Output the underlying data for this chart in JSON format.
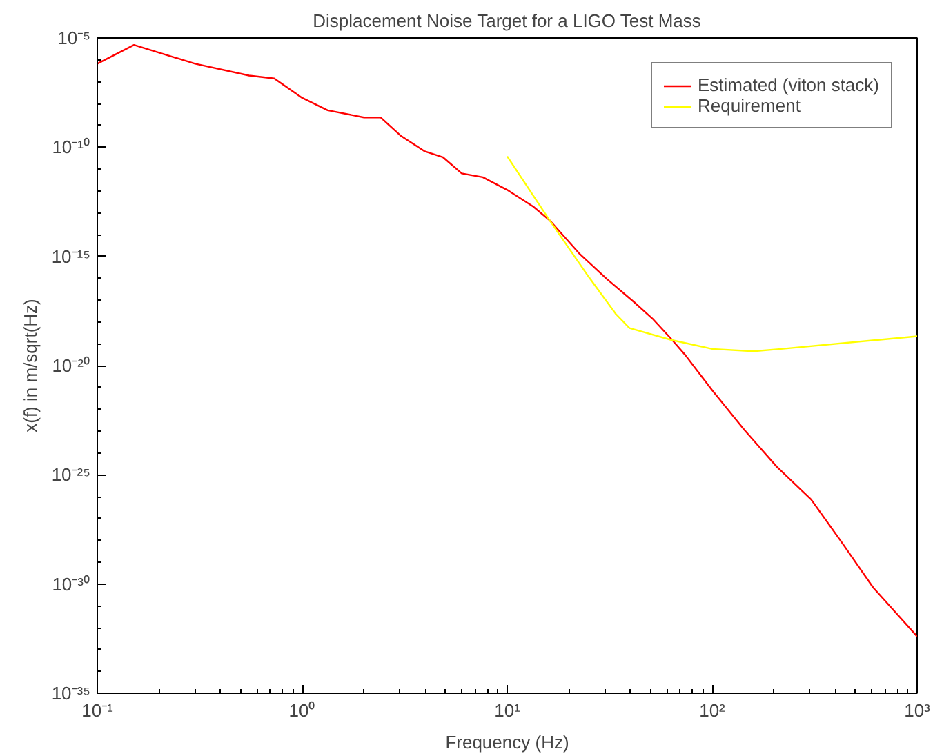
{
  "chart_data": {
    "type": "line",
    "title": "Displacement Noise Target for a LIGO Test Mass",
    "xlabel": "Frequency (Hz)",
    "ylabel": "x(f) in m/sqrt(Hz)",
    "log": "xy",
    "grid": false,
    "legend": "top right",
    "line_style": "solid",
    "marker": "none",
    "xlim": [
      0.1,
      1000
    ],
    "ylim": [
      1e-35,
      1e-05
    ],
    "xticks": [
      {
        "value": 0.1,
        "label": "10⁻¹"
      },
      {
        "value": 1,
        "label": "10⁰"
      },
      {
        "value": 10,
        "label": "10¹"
      },
      {
        "value": 100,
        "label": "10²"
      },
      {
        "value": 1000,
        "label": "10³"
      }
    ],
    "yticks": [
      {
        "value": 1e-35,
        "label": "10⁻³⁵"
      },
      {
        "value": 1e-30,
        "label": "10⁻³⁰"
      },
      {
        "value": 1e-25,
        "label": "10⁻²⁵"
      },
      {
        "value": 1e-20,
        "label": "10⁻²⁰"
      },
      {
        "value": 1e-15,
        "label": "10⁻¹⁵"
      },
      {
        "value": 1e-10,
        "label": "10⁻¹⁰"
      },
      {
        "value": 1e-05,
        "label": "10⁻⁵"
      }
    ],
    "series": [
      {
        "name": "Estimated (viton stack)",
        "color": "#ff0000",
        "x": [
          0.1,
          0.151,
          0.3,
          0.55,
          0.73,
          1.0,
          1.33,
          2.0,
          2.41,
          3.04,
          3.94,
          4.85,
          6.0,
          7.6,
          10,
          13.4,
          16.1,
          22.4,
          30.6,
          41.7,
          51.2,
          63,
          74,
          100,
          144,
          207,
          304,
          425,
          611,
          1000
        ],
        "values": [
          6.6e-07,
          4.8e-06,
          6.6e-07,
          1.9e-07,
          1.4e-07,
          1.8e-08,
          4.9e-09,
          2.3e-09,
          2.3e-09,
          3.2e-10,
          6.6e-11,
          3.5e-11,
          6.3e-12,
          4.2e-12,
          1.1e-12,
          1.9e-13,
          4.5e-14,
          1.4e-15,
          9.3e-17,
          7.9e-18,
          1.4e-18,
          1.7e-19,
          3e-20,
          7.4e-22,
          1.1e-23,
          2.3e-25,
          7.4e-27,
          9.1e-29,
          6.8e-31,
          4e-33
        ]
      },
      {
        "name": "Requirement",
        "color": "#ffff00",
        "x": [
          10,
          16.1,
          24.9,
          33.9,
          39.5,
          63,
          100,
          159,
          217,
          1000
        ],
        "values": [
          3.8e-11,
          4.5e-14,
          1.2e-16,
          2.3e-18,
          5.2e-19,
          1.5e-19,
          5.8e-20,
          4.5e-20,
          5.8e-20,
          2.2e-19
        ]
      }
    ]
  }
}
